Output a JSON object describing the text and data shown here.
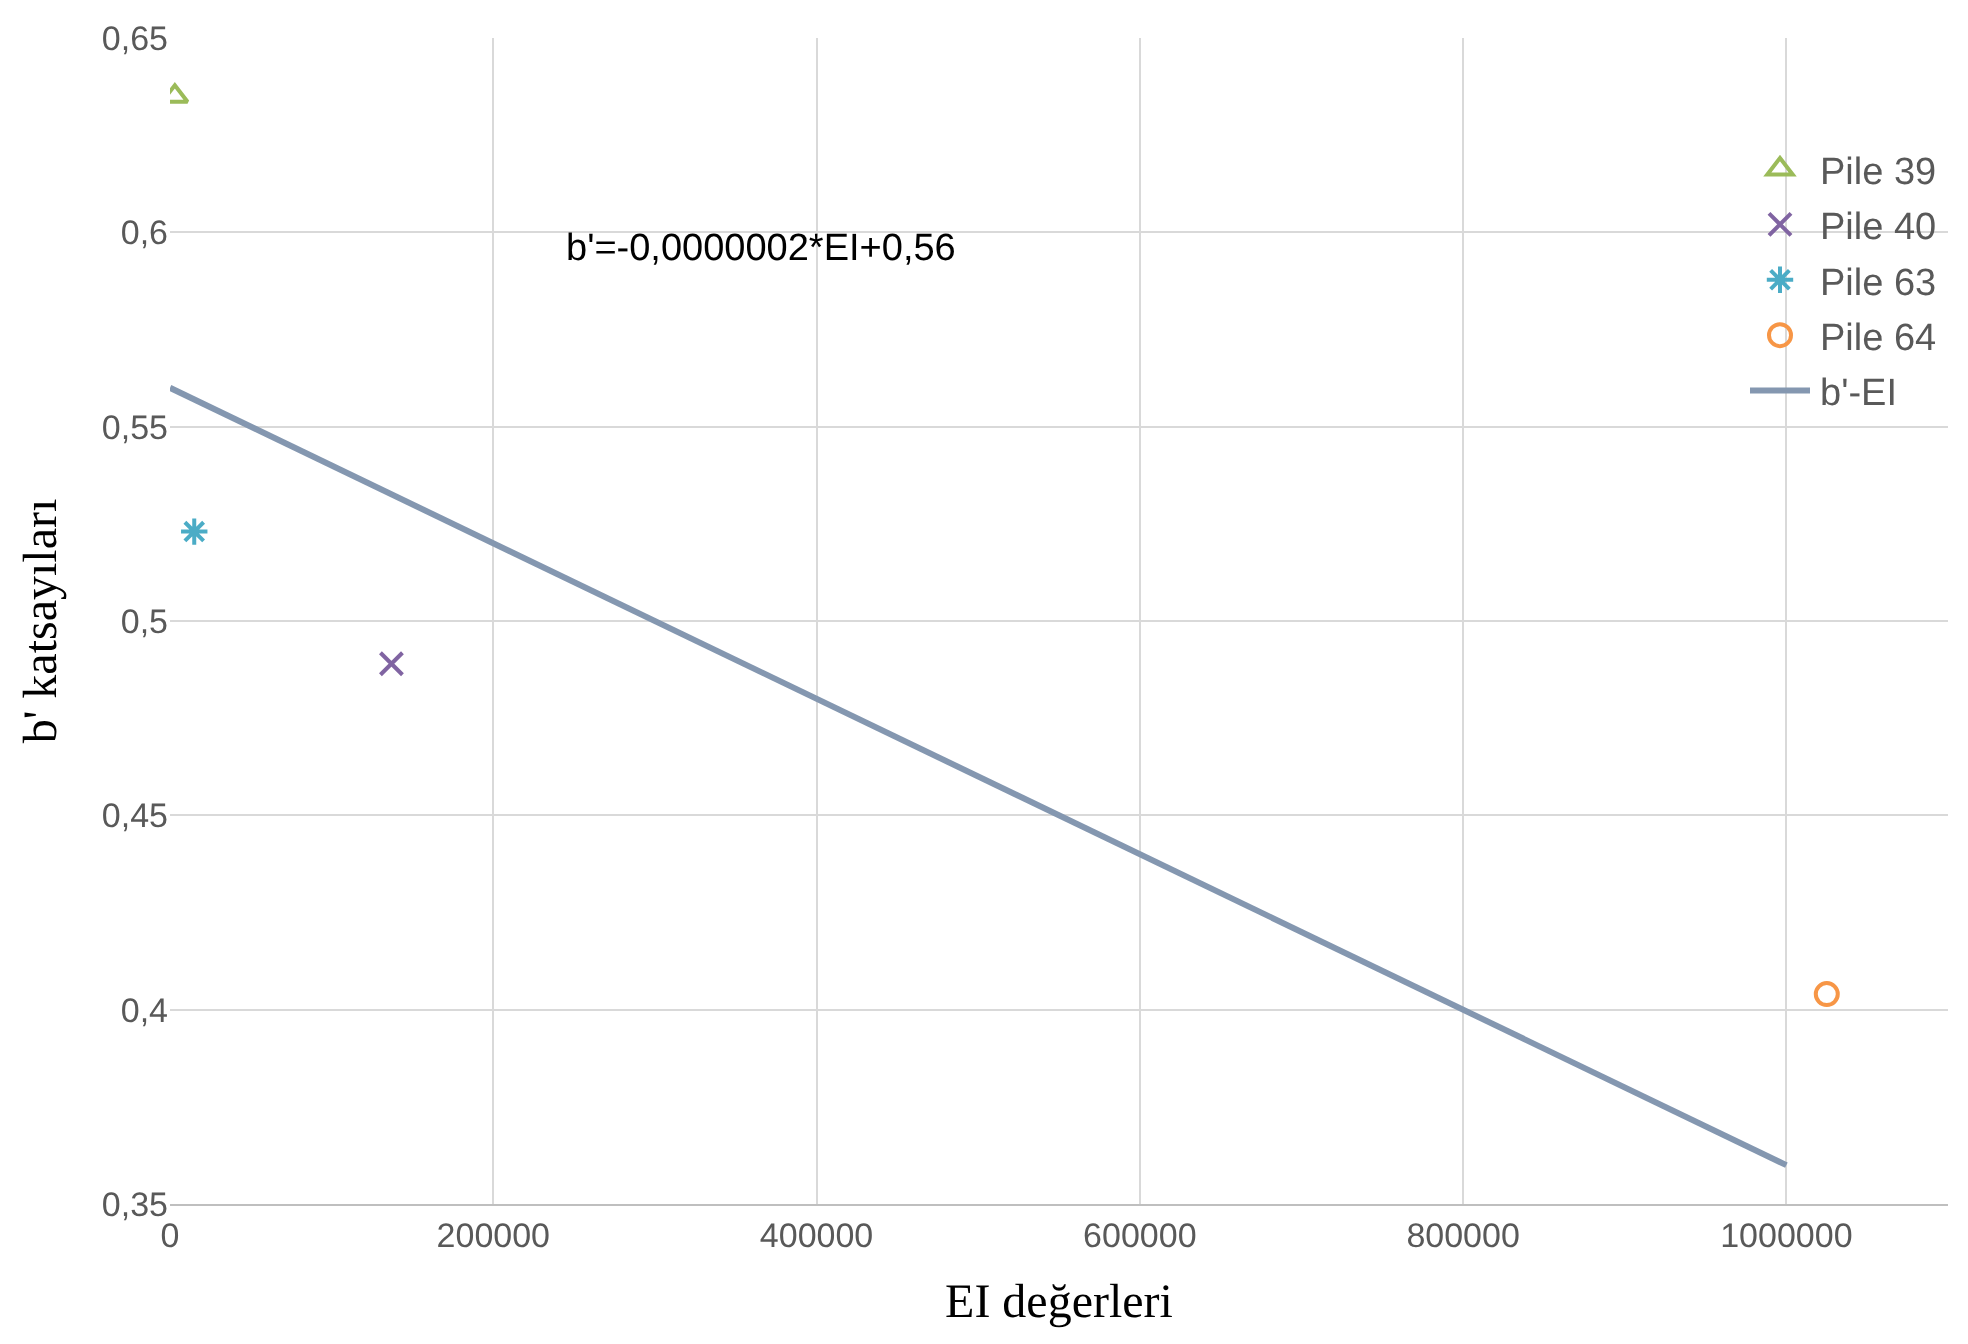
{
  "chart_data": {
    "type": "scatter",
    "xlabel": "EI değerleri",
    "ylabel": "b' katsayıları",
    "annotations": [
      "b'=-0,0000002*EI+0,56"
    ],
    "xlim": [
      0,
      1100000
    ],
    "xticks": [
      0,
      200000,
      400000,
      600000,
      800000,
      1000000
    ],
    "ylim": [
      0.35,
      0.65
    ],
    "yticks": [
      {
        "value": 0.35,
        "label": "0,35"
      },
      {
        "value": 0.4,
        "label": "0,4"
      },
      {
        "value": 0.45,
        "label": "0,45"
      },
      {
        "value": 0.5,
        "label": "0,5"
      },
      {
        "value": 0.55,
        "label": "0,55"
      },
      {
        "value": 0.6,
        "label": "0,6"
      },
      {
        "value": 0.65,
        "label": "0,65"
      }
    ],
    "grid": true,
    "legend": "right",
    "series": [
      {
        "name": "Pile 39",
        "color": "#9bbb59",
        "marker": "triangle",
        "x": [
          3000
        ],
        "values": [
          0.635
        ]
      },
      {
        "name": "Pile 40",
        "color": "#8064a2",
        "marker": "cross",
        "x": [
          137000
        ],
        "values": [
          0.489
        ]
      },
      {
        "name": "Pile 63",
        "color": "#4bacc6",
        "x": [
          15000
        ],
        "values": [
          0.523
        ]
      },
      {
        "name": "Pile 64",
        "color": "#f79646",
        "marker": "circle",
        "x": [
          1025000
        ],
        "values": [
          0.404
        ]
      },
      {
        "name": "b'-EI",
        "color": "#8497b0",
        "type": "line",
        "marker": "none",
        "x": [
          0,
          1000000
        ],
        "values": [
          0.56,
          0.36
        ]
      }
    ]
  }
}
